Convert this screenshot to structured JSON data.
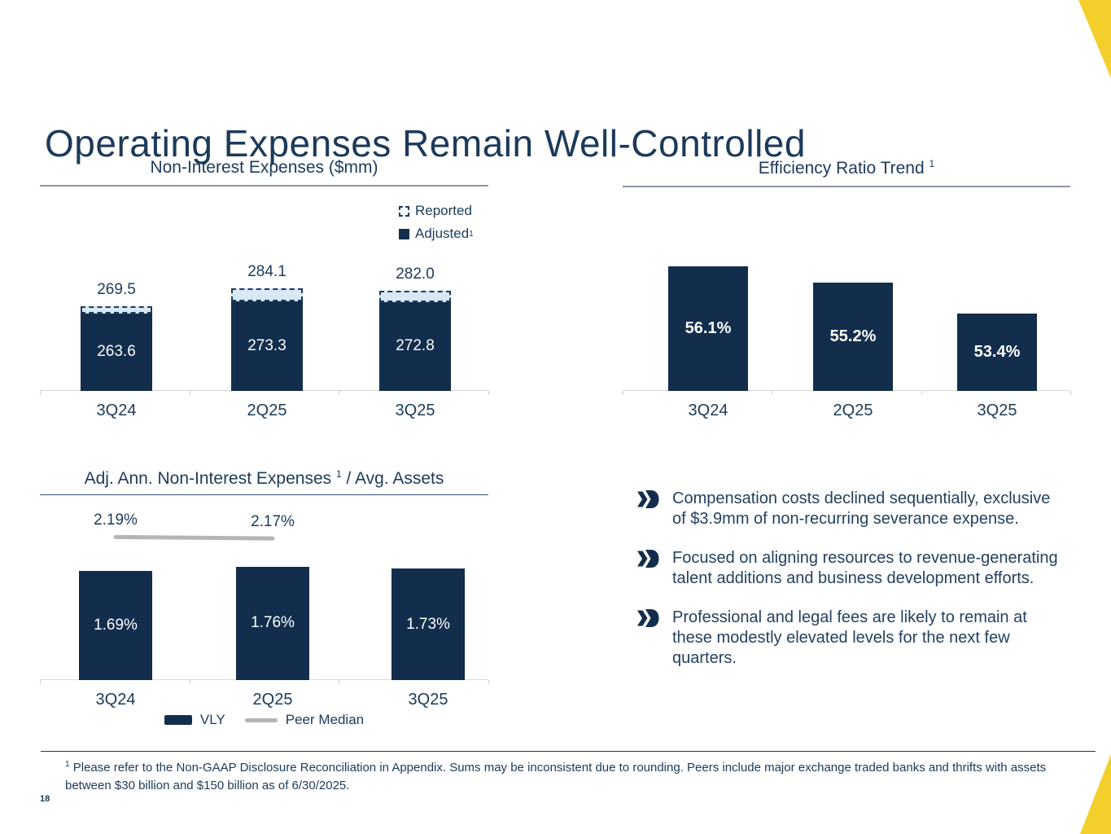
{
  "slide": {
    "title": "Operating Expenses Remain Well-Controlled",
    "page_number": "18",
    "footnote_marker": "1",
    "footnote": "Please refer to the Non-GAAP Disclosure Reconciliation in Appendix. Sums may be inconsistent due to rounding.  Peers include major exchange traded banks and thrifts with assets between $30 billion and $150 billion as of 6/30/2025."
  },
  "colors": {
    "navy_bar": "#122E4C",
    "text_navy": "#1C3A5A",
    "reported_fill": "#D9E8F7",
    "accent_yellow": "#F3CF2B",
    "peer_line_gray": "#B5B5B5",
    "axis_gray": "#D9D9D9"
  },
  "chart_data": [
    {
      "id": "non_interest_expenses",
      "type": "bar",
      "title": "Non-Interest Expenses ($mm)",
      "categories": [
        "3Q24",
        "2Q25",
        "3Q25"
      ],
      "series": [
        {
          "name": "Reported",
          "values": [
            269.5,
            284.1,
            282.0
          ],
          "labels": [
            "269.5",
            "284.1",
            "282.0"
          ],
          "style": "dashed-cap"
        },
        {
          "name": "Adjusted",
          "superscript": "1",
          "values": [
            263.6,
            273.3,
            272.8
          ],
          "labels": [
            "263.6",
            "273.3",
            "272.8"
          ],
          "style": "solid"
        }
      ],
      "legend": [
        {
          "label": "Reported",
          "superscript": ""
        },
        {
          "label": "Adjusted",
          "superscript": "1"
        }
      ],
      "ylabel": "",
      "grid": false,
      "value_axis_hidden": true
    },
    {
      "id": "efficiency_ratio_trend",
      "type": "bar",
      "title": "Efficiency Ratio Trend",
      "title_superscript": "1",
      "categories": [
        "3Q24",
        "2Q25",
        "3Q25"
      ],
      "values": [
        56.1,
        55.2,
        53.4
      ],
      "labels": [
        "56.1%",
        "55.2%",
        "53.4%"
      ],
      "ylabel": "",
      "grid": false,
      "value_axis_hidden": true
    },
    {
      "id": "adj_ann_non_interest_expenses_avg_assets",
      "type": "bar+line",
      "title": "Adj. Ann. Non-Interest Expenses",
      "title_superscript": "1",
      "title_suffix": " / Avg. Assets",
      "categories": [
        "3Q24",
        "2Q25",
        "3Q25"
      ],
      "series": [
        {
          "name": "VLY",
          "type": "bar",
          "values": [
            1.69,
            1.76,
            1.73
          ],
          "labels": [
            "1.69%",
            "1.76%",
            "1.73%"
          ]
        },
        {
          "name": "Peer Median",
          "type": "line",
          "values": [
            2.19,
            2.17,
            null
          ],
          "labels": [
            "2.19%",
            "2.17%"
          ]
        }
      ],
      "legend": [
        {
          "label": "VLY"
        },
        {
          "label": "Peer Median"
        }
      ],
      "ylabel": "",
      "grid": false,
      "value_axis_hidden": true
    }
  ],
  "bullets": [
    "Compensation costs declined sequentially, exclusive of $3.9mm of non-recurring severance expense.",
    "Focused on aligning resources to revenue-generating talent additions and business development efforts.",
    "Professional and legal fees are likely to remain at these modestly elevated levels for the next few quarters."
  ]
}
